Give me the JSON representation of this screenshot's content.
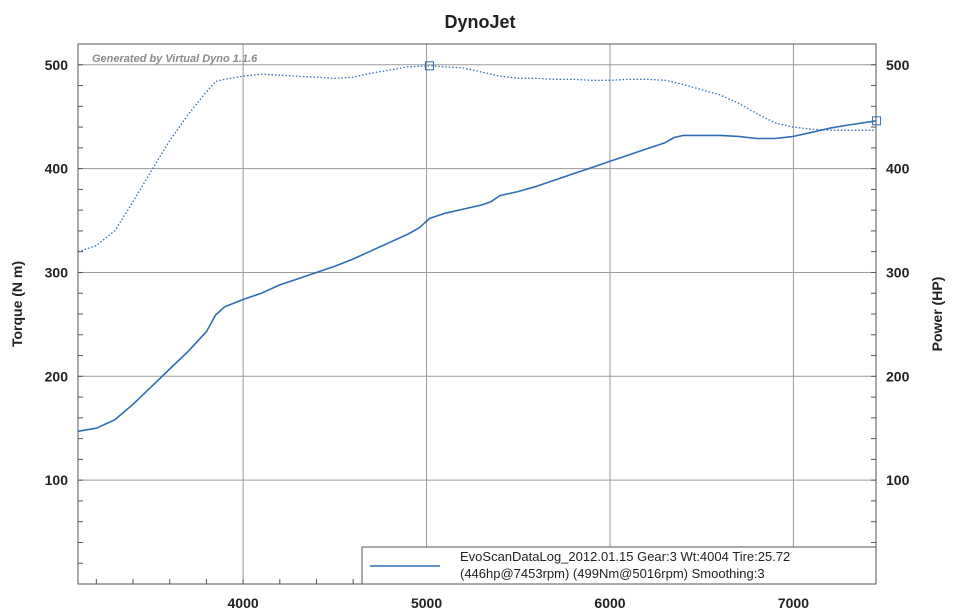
{
  "chart_data": {
    "type": "line",
    "title": "DynoJet",
    "watermark": "Generated by Virtual Dyno 1.1.6",
    "ylabel_left": "Torque (N m)",
    "ylabel_right": "Power (HP)",
    "xlim": [
      3100,
      7450
    ],
    "ylim": [
      0,
      520
    ],
    "x_ticks": [
      4000,
      5000,
      6000,
      7000
    ],
    "y_ticks": [
      100,
      200,
      300,
      400,
      500
    ],
    "grid": true,
    "legend_position": "bottom-right",
    "legend": {
      "line1": "EvoScanDataLog_2012.01.15 Gear:3 Wt:4004 Tire:25.72",
      "line2": "(446hp@7453rpm) (499Nm@5016rpm) Smoothing:3"
    },
    "series": [
      {
        "style": "dotted",
        "color": "#2e6db4",
        "peak": {
          "x": 5016,
          "y": 499
        },
        "points": [
          [
            3100,
            320
          ],
          [
            3200,
            326
          ],
          [
            3300,
            340
          ],
          [
            3400,
            368
          ],
          [
            3500,
            398
          ],
          [
            3600,
            427
          ],
          [
            3700,
            452
          ],
          [
            3800,
            474
          ],
          [
            3850,
            484
          ],
          [
            3900,
            486
          ],
          [
            4000,
            489
          ],
          [
            4100,
            491
          ],
          [
            4200,
            490
          ],
          [
            4300,
            489
          ],
          [
            4400,
            488
          ],
          [
            4500,
            487
          ],
          [
            4600,
            488
          ],
          [
            4700,
            492
          ],
          [
            4800,
            495
          ],
          [
            4900,
            498
          ],
          [
            5016,
            499
          ],
          [
            5100,
            498
          ],
          [
            5200,
            497
          ],
          [
            5300,
            493
          ],
          [
            5400,
            489
          ],
          [
            5500,
            487
          ],
          [
            5600,
            487
          ],
          [
            5700,
            486
          ],
          [
            5800,
            486
          ],
          [
            5900,
            485
          ],
          [
            6000,
            485
          ],
          [
            6100,
            486
          ],
          [
            6200,
            486
          ],
          [
            6300,
            485
          ],
          [
            6400,
            481
          ],
          [
            6500,
            476
          ],
          [
            6600,
            471
          ],
          [
            6700,
            463
          ],
          [
            6800,
            453
          ],
          [
            6900,
            444
          ],
          [
            7000,
            440
          ],
          [
            7100,
            438
          ],
          [
            7200,
            437
          ],
          [
            7300,
            437
          ],
          [
            7450,
            437
          ]
        ]
      },
      {
        "style": "solid",
        "color": "#2e6db4",
        "peak": {
          "x": 7453,
          "y": 446
        },
        "points": [
          [
            3100,
            147
          ],
          [
            3200,
            150
          ],
          [
            3300,
            158
          ],
          [
            3400,
            173
          ],
          [
            3500,
            190
          ],
          [
            3600,
            207
          ],
          [
            3700,
            224
          ],
          [
            3800,
            243
          ],
          [
            3850,
            259
          ],
          [
            3900,
            267
          ],
          [
            4000,
            274
          ],
          [
            4100,
            280
          ],
          [
            4200,
            288
          ],
          [
            4300,
            294
          ],
          [
            4400,
            300
          ],
          [
            4500,
            306
          ],
          [
            4600,
            313
          ],
          [
            4700,
            321
          ],
          [
            4800,
            329
          ],
          [
            4900,
            337
          ],
          [
            4960,
            343
          ],
          [
            5016,
            352
          ],
          [
            5100,
            357
          ],
          [
            5200,
            361
          ],
          [
            5300,
            365
          ],
          [
            5350,
            368
          ],
          [
            5400,
            374
          ],
          [
            5500,
            378
          ],
          [
            5600,
            383
          ],
          [
            5700,
            389
          ],
          [
            5800,
            395
          ],
          [
            5900,
            401
          ],
          [
            6000,
            407
          ],
          [
            6100,
            413
          ],
          [
            6200,
            419
          ],
          [
            6300,
            425
          ],
          [
            6350,
            430
          ],
          [
            6400,
            432
          ],
          [
            6500,
            432
          ],
          [
            6600,
            432
          ],
          [
            6700,
            431
          ],
          [
            6800,
            429
          ],
          [
            6900,
            429
          ],
          [
            7000,
            431
          ],
          [
            7100,
            435
          ],
          [
            7200,
            439
          ],
          [
            7300,
            442
          ],
          [
            7453,
            446
          ]
        ]
      }
    ]
  }
}
